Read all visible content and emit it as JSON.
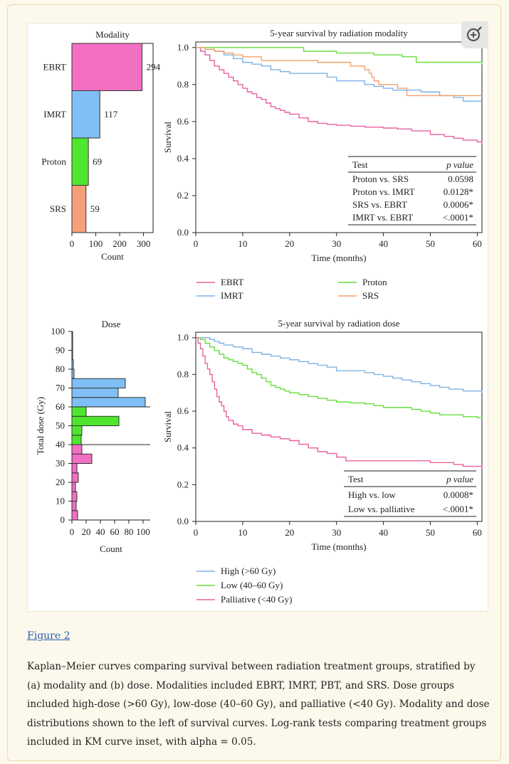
{
  "figure": {
    "link_text": "Figure 2",
    "caption": "Kaplan–Meier curves comparing survival between radiation treatment groups, stratified by (a) modality and (b) dose. Modalities included EBRT, IMRT, PBT, and SRS. Dose groups included high-dose (>60 Gy), low-dose (40–60 Gy), and palliative (<40 Gy). Modality and dose distributions shown to the left of survival curves. Log-rank tests comparing treatment groups included in KM curve inset, with alpha = 0.05.",
    "zoom_icon": "zoom-in-icon"
  },
  "chart_data": [
    {
      "type": "bar",
      "orientation": "horizontal",
      "title": "Modality",
      "categories": [
        "EBRT",
        "IMRT",
        "Proton",
        "SRS"
      ],
      "values": [
        294,
        117,
        69,
        59
      ],
      "colors": [
        "#f26fc4",
        "#7fbff5",
        "#4fe62e",
        "#f5a07a"
      ],
      "xlabel": "Count",
      "xticks": [
        0,
        100,
        200,
        300
      ],
      "xlim": [
        0,
        340
      ]
    },
    {
      "type": "line",
      "step": true,
      "title": "5-year survival by radiation modality",
      "xlabel": "Time (months)",
      "ylabel": "Survival",
      "xlim": [
        0,
        61
      ],
      "ylim": [
        0,
        1.03
      ],
      "xticks": [
        0,
        10,
        20,
        30,
        40,
        50,
        60
      ],
      "yticks": [
        "0.0",
        "0.2",
        "0.4",
        "0.6",
        "0.8",
        "1.0"
      ],
      "series": [
        {
          "name": "EBRT",
          "color": "#e9619f",
          "x": [
            0,
            1,
            2,
            3,
            4,
            5,
            6,
            7,
            8,
            9,
            10,
            11,
            12,
            13,
            14,
            15,
            16,
            17,
            18,
            19,
            20,
            22,
            24,
            26,
            28,
            30,
            33,
            36,
            40,
            43,
            46,
            50,
            53,
            55,
            57,
            60,
            61
          ],
          "y": [
            1.0,
            0.98,
            0.96,
            0.93,
            0.9,
            0.88,
            0.86,
            0.84,
            0.82,
            0.8,
            0.78,
            0.76,
            0.75,
            0.73,
            0.72,
            0.7,
            0.68,
            0.67,
            0.66,
            0.65,
            0.64,
            0.62,
            0.6,
            0.59,
            0.585,
            0.58,
            0.575,
            0.57,
            0.565,
            0.56,
            0.55,
            0.53,
            0.52,
            0.51,
            0.5,
            0.49,
            0.48
          ]
        },
        {
          "name": "IMRT",
          "color": "#7fb2e6",
          "x": [
            0,
            2,
            4,
            6,
            8,
            10,
            12,
            14,
            16,
            18,
            20,
            24,
            28,
            30,
            33,
            36,
            38,
            40,
            42,
            46,
            48,
            50,
            52,
            55,
            57,
            61
          ],
          "y": [
            1.0,
            0.99,
            0.98,
            0.96,
            0.94,
            0.92,
            0.91,
            0.9,
            0.88,
            0.87,
            0.86,
            0.86,
            0.84,
            0.82,
            0.82,
            0.8,
            0.79,
            0.78,
            0.77,
            0.77,
            0.76,
            0.76,
            0.74,
            0.73,
            0.71,
            0.71
          ]
        },
        {
          "name": "Proton",
          "color": "#66de3c",
          "x": [
            0,
            3,
            10,
            20,
            23,
            30,
            35,
            38,
            44,
            47,
            50,
            55,
            61
          ],
          "y": [
            1.0,
            1.0,
            1.0,
            1.0,
            0.98,
            0.97,
            0.97,
            0.96,
            0.95,
            0.92,
            0.92,
            0.92,
            0.91
          ]
        },
        {
          "name": "SRS",
          "color": "#f2a068",
          "x": [
            0,
            2,
            4,
            6,
            8,
            10,
            14,
            20,
            26,
            30,
            33,
            35,
            36,
            37,
            37.5,
            38,
            39,
            42,
            43,
            45,
            50,
            55,
            61
          ],
          "y": [
            1.0,
            0.99,
            0.98,
            0.97,
            0.96,
            0.95,
            0.93,
            0.93,
            0.92,
            0.92,
            0.9,
            0.9,
            0.88,
            0.86,
            0.84,
            0.82,
            0.8,
            0.8,
            0.78,
            0.74,
            0.74,
            0.74,
            0.74
          ]
        }
      ],
      "inset_table": {
        "headers": [
          "Test",
          "p value"
        ],
        "rows": [
          [
            "Proton vs. SRS",
            "0.0598"
          ],
          [
            "Proton vs. IMRT",
            "0.0128*"
          ],
          [
            "SRS vs. EBRT",
            "0.0006*"
          ],
          [
            "IMRT vs. EBRT",
            "<.0001*"
          ]
        ]
      }
    },
    {
      "type": "bar",
      "orientation": "horizontal",
      "title": "Dose",
      "ylabel": "Total dose (Gy)",
      "xlabel": "Count",
      "yticks": [
        0,
        10,
        20,
        30,
        40,
        50,
        60,
        70,
        80,
        90,
        100
      ],
      "ylim": [
        0,
        100
      ],
      "xticks": [
        0,
        20,
        40,
        60,
        80,
        100
      ],
      "xlim": [
        0,
        110
      ],
      "bins": [
        {
          "from": 0,
          "to": 5,
          "count": 8,
          "color": "#f26fc4"
        },
        {
          "from": 5,
          "to": 10,
          "count": 6,
          "color": "#f26fc4"
        },
        {
          "from": 10,
          "to": 15,
          "count": 7,
          "color": "#f26fc4"
        },
        {
          "from": 15,
          "to": 20,
          "count": 5,
          "color": "#f26fc4"
        },
        {
          "from": 20,
          "to": 25,
          "count": 9,
          "color": "#f26fc4"
        },
        {
          "from": 25,
          "to": 30,
          "count": 7,
          "color": "#f26fc4"
        },
        {
          "from": 30,
          "to": 35,
          "count": 28,
          "color": "#f26fc4"
        },
        {
          "from": 35,
          "to": 40,
          "count": 14,
          "color": "#f26fc4"
        },
        {
          "from": 40,
          "to": 45,
          "count": 13,
          "color": "#4fe62e"
        },
        {
          "from": 45,
          "to": 50,
          "count": 14,
          "color": "#4fe62e"
        },
        {
          "from": 50,
          "to": 55,
          "count": 66,
          "color": "#4fe62e"
        },
        {
          "from": 55,
          "to": 60,
          "count": 20,
          "color": "#4fe62e"
        },
        {
          "from": 60,
          "to": 65,
          "count": 103,
          "color": "#7fbff5"
        },
        {
          "from": 65,
          "to": 70,
          "count": 65,
          "color": "#7fbff5"
        },
        {
          "from": 70,
          "to": 75,
          "count": 75,
          "color": "#7fbff5"
        },
        {
          "from": 75,
          "to": 80,
          "count": 3,
          "color": "#7fbff5"
        },
        {
          "from": 80,
          "to": 85,
          "count": 2,
          "color": "#7fbff5"
        },
        {
          "from": 85,
          "to": 100,
          "count": 1,
          "color": "#7fbff5"
        }
      ]
    },
    {
      "type": "line",
      "step": true,
      "title": "5-year survival by radiation dose",
      "xlabel": "Time (months)",
      "ylabel": "Survival",
      "xlim": [
        0,
        61
      ],
      "ylim": [
        0,
        1.03
      ],
      "xticks": [
        0,
        10,
        20,
        30,
        40,
        50,
        60
      ],
      "yticks": [
        "0.0",
        "0.2",
        "0.4",
        "0.6",
        "0.8",
        "1.0"
      ],
      "series": [
        {
          "name": "High (>60 Gy)",
          "color": "#7fb2e6",
          "x": [
            0,
            2,
            3,
            4,
            5,
            6,
            8,
            10,
            12,
            14,
            16,
            18,
            20,
            22,
            24,
            26,
            28,
            30,
            33,
            36,
            38,
            40,
            42,
            44,
            46,
            48,
            50,
            52,
            54,
            57,
            61
          ],
          "y": [
            1.0,
            1.0,
            0.99,
            0.98,
            0.97,
            0.96,
            0.95,
            0.94,
            0.92,
            0.91,
            0.9,
            0.89,
            0.88,
            0.87,
            0.86,
            0.85,
            0.84,
            0.82,
            0.82,
            0.81,
            0.8,
            0.79,
            0.78,
            0.77,
            0.76,
            0.75,
            0.74,
            0.73,
            0.72,
            0.71,
            0.7
          ]
        },
        {
          "name": "Low (40–60 Gy)",
          "color": "#66de3c",
          "x": [
            0,
            1,
            2,
            3,
            4,
            5,
            6,
            7,
            8,
            9,
            10,
            11,
            12,
            13,
            14,
            15,
            16,
            17,
            18,
            19,
            20,
            22,
            24,
            26,
            28,
            30,
            33,
            36,
            38,
            40,
            43,
            46,
            48,
            50,
            52,
            55,
            57,
            60,
            61
          ],
          "y": [
            1.0,
            0.99,
            0.97,
            0.95,
            0.93,
            0.91,
            0.89,
            0.88,
            0.87,
            0.86,
            0.85,
            0.83,
            0.81,
            0.8,
            0.78,
            0.76,
            0.74,
            0.73,
            0.72,
            0.71,
            0.7,
            0.69,
            0.68,
            0.67,
            0.66,
            0.65,
            0.645,
            0.64,
            0.63,
            0.62,
            0.62,
            0.61,
            0.6,
            0.59,
            0.58,
            0.58,
            0.57,
            0.565,
            0.56
          ]
        },
        {
          "name": "Palliative (<40 Gy)",
          "color": "#e9619f",
          "x": [
            0,
            0.5,
            1,
            1.5,
            2,
            2.5,
            3,
            3.5,
            4,
            4.5,
            5,
            5.5,
            6,
            6.5,
            7,
            8,
            9,
            10,
            12,
            14,
            16,
            18,
            20,
            22,
            24,
            26,
            28,
            30,
            32,
            35,
            40,
            45,
            50,
            55,
            57,
            61
          ],
          "y": [
            1.0,
            0.97,
            0.94,
            0.9,
            0.86,
            0.83,
            0.8,
            0.76,
            0.72,
            0.68,
            0.65,
            0.63,
            0.6,
            0.57,
            0.55,
            0.53,
            0.52,
            0.5,
            0.48,
            0.47,
            0.46,
            0.45,
            0.44,
            0.42,
            0.4,
            0.38,
            0.37,
            0.35,
            0.33,
            0.33,
            0.33,
            0.33,
            0.32,
            0.31,
            0.3,
            0.29
          ]
        }
      ],
      "inset_table": {
        "headers": [
          "Test",
          "p value"
        ],
        "rows": [
          [
            "High vs. low",
            "0.0008*"
          ],
          [
            "Low vs. palliative",
            "<.0001*"
          ]
        ]
      }
    }
  ]
}
